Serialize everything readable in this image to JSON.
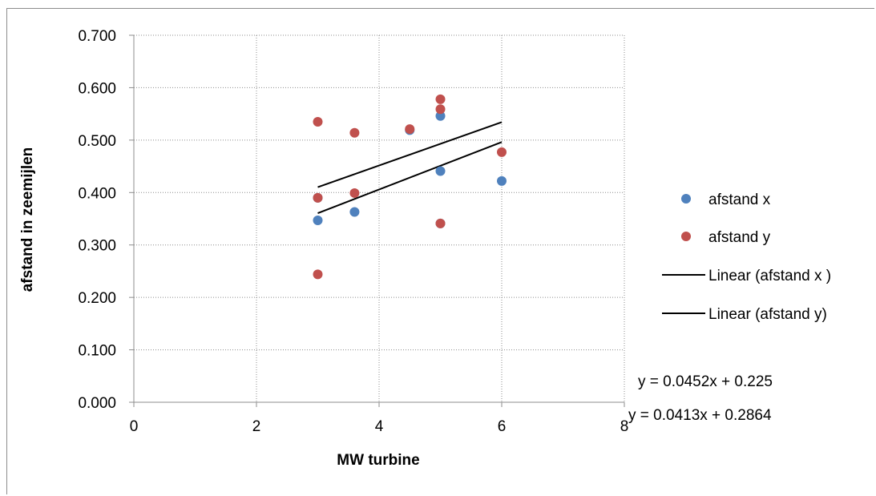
{
  "chart_data": {
    "type": "scatter",
    "title": "",
    "xlabel": "MW turbine",
    "ylabel": "afstand in zeemijlen",
    "xlim": [
      0,
      8
    ],
    "ylim": [
      0,
      0.7
    ],
    "x_ticks": [
      0,
      2,
      4,
      6,
      8
    ],
    "x_tick_labels": [
      "0",
      "2",
      "4",
      "6",
      "8"
    ],
    "y_ticks": [
      0,
      0.1,
      0.2,
      0.3,
      0.4,
      0.5,
      0.6,
      0.7
    ],
    "y_tick_labels": [
      "0.000",
      "0.100",
      "0.200",
      "0.300",
      "0.400",
      "0.500",
      "0.600",
      "0.700"
    ],
    "grid": true,
    "legend_position": "right",
    "series": [
      {
        "name": "afstand x",
        "kind": "points",
        "color": "#4f81bd",
        "points": [
          [
            3,
            0.347
          ],
          [
            3,
            0.39
          ],
          [
            3.6,
            0.363
          ],
          [
            4.5,
            0.519
          ],
          [
            5,
            0.546
          ],
          [
            5,
            0.441
          ],
          [
            5,
            0.341
          ],
          [
            6,
            0.422
          ]
        ]
      },
      {
        "name": "afstand y",
        "kind": "points",
        "color": "#c0504d",
        "points": [
          [
            3,
            0.535
          ],
          [
            3,
            0.39
          ],
          [
            3,
            0.244
          ],
          [
            3.6,
            0.514
          ],
          [
            3.6,
            0.399
          ],
          [
            4.5,
            0.521
          ],
          [
            5,
            0.578
          ],
          [
            5,
            0.559
          ],
          [
            5,
            0.341
          ],
          [
            6,
            0.477
          ]
        ]
      },
      {
        "name": "Linear (afstand x )",
        "kind": "trendline",
        "color": "#000000",
        "slope": 0.0452,
        "intercept": 0.225,
        "x_range": [
          3,
          6
        ]
      },
      {
        "name": "Linear (afstand y)",
        "kind": "trendline",
        "color": "#000000",
        "slope": 0.0413,
        "intercept": 0.2864,
        "x_range": [
          3,
          6
        ]
      }
    ],
    "annotations": [
      "y = 0.0452x + 0.225",
      "y = 0.0413x + 0.2864"
    ]
  }
}
